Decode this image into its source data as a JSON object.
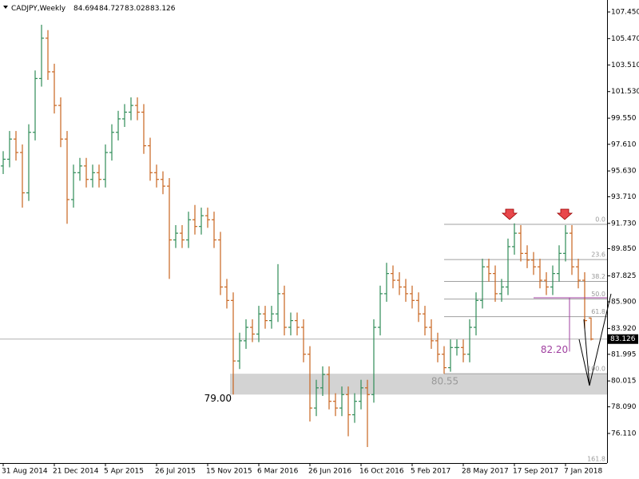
{
  "chart_data": {
    "type": "ohlc",
    "symbol": "CADJPY,Weekly",
    "categories": [
      "31 Aug 2014",
      null,
      null,
      null,
      null,
      null,
      null,
      null,
      "21 Dec 2014",
      null,
      null,
      null,
      null,
      null,
      null,
      null,
      "5 Apr 2015",
      null,
      null,
      null,
      null,
      null,
      null,
      null,
      "26 Jul 2015",
      null,
      null,
      null,
      null,
      null,
      null,
      null,
      "15 Nov 2015",
      null,
      null,
      null,
      null,
      null,
      null,
      null,
      "6 Mar 2016",
      null,
      null,
      null,
      null,
      null,
      null,
      null,
      "26 Jun 2016",
      null,
      null,
      null,
      null,
      null,
      null,
      null,
      "16 Oct 2016",
      null,
      null,
      null,
      null,
      null,
      null,
      null,
      "5 Feb 2017",
      null,
      null,
      null,
      null,
      null,
      null,
      null,
      "28 May 2017",
      null,
      null,
      null,
      null,
      null,
      null,
      null,
      "17 Sep 2017",
      null,
      null,
      null,
      null,
      null,
      null,
      null,
      "7 Jan 2018",
      null,
      null,
      null,
      null
    ],
    "open": [
      96.0,
      96.5,
      98.0,
      97.0,
      94.0,
      98.5,
      102.5,
      105.5,
      103.0,
      100.5,
      98.0,
      93.5,
      95.5,
      96.0,
      95.0,
      95.5,
      95.0,
      97.0,
      98.5,
      99.5,
      100.0,
      100.5,
      100.0,
      97.5,
      95.5,
      95.0,
      94.5,
      90.5,
      91.0,
      90.5,
      92.0,
      91.5,
      92.3,
      92.0,
      90.5,
      87.0,
      86.0,
      81.5,
      83.0,
      84.0,
      83.5,
      85.0,
      84.5,
      85.0,
      86.5,
      84.0,
      84.5,
      84.0,
      82.0,
      78.0,
      79.5,
      80.5,
      78.5,
      78.0,
      79.0,
      77.5,
      78.5,
      79.5,
      79.0,
      84.0,
      86.5,
      88.0,
      87.5,
      87.0,
      86.5,
      86.0,
      85.0,
      84.0,
      83.0,
      82.0,
      81.0,
      82.5,
      82.5,
      82.0,
      84.0,
      86.0,
      88.5,
      88.0,
      86.5,
      87.0,
      90.0,
      91.0,
      89.5,
      89.0,
      88.5,
      87.5,
      87.0,
      88.0,
      89.5,
      91.0,
      88.5,
      87.5,
      84.694
    ],
    "high": [
      97.1,
      98.6,
      98.6,
      97.6,
      99.1,
      103.1,
      106.5,
      106.1,
      103.6,
      101.1,
      98.6,
      96.1,
      96.6,
      96.6,
      96.1,
      96.1,
      97.6,
      99.1,
      100.1,
      100.6,
      101.1,
      101.1,
      100.6,
      98.1,
      96.1,
      95.6,
      95.1,
      91.6,
      91.6,
      92.6,
      93.1,
      92.9,
      92.9,
      92.6,
      91.1,
      87.6,
      86.6,
      83.6,
      84.6,
      84.6,
      85.6,
      85.6,
      85.6,
      88.7,
      87.1,
      85.1,
      85.1,
      84.6,
      82.6,
      80.1,
      81.1,
      81.1,
      79.1,
      79.6,
      79.6,
      79.1,
      80.1,
      80.1,
      84.6,
      87.1,
      88.8,
      88.6,
      88.1,
      87.6,
      87.1,
      86.6,
      85.6,
      84.6,
      83.6,
      82.6,
      83.1,
      83.1,
      83.1,
      84.6,
      86.6,
      89.1,
      89.1,
      88.6,
      87.6,
      90.6,
      91.73,
      91.6,
      90.1,
      89.6,
      89.1,
      88.1,
      88.6,
      90.1,
      91.6,
      91.6,
      89.1,
      88.1,
      84.727
    ],
    "low": [
      95.4,
      95.9,
      96.4,
      92.9,
      93.4,
      97.9,
      101.9,
      102.4,
      99.9,
      97.4,
      91.7,
      92.9,
      94.9,
      94.4,
      94.4,
      94.4,
      94.4,
      96.4,
      97.9,
      98.9,
      99.4,
      99.4,
      96.9,
      94.9,
      94.4,
      93.9,
      87.6,
      89.9,
      89.9,
      89.9,
      90.9,
      90.9,
      91.4,
      89.9,
      86.4,
      85.4,
      79.0,
      80.9,
      82.4,
      82.9,
      82.9,
      83.9,
      83.9,
      84.4,
      83.4,
      83.4,
      83.4,
      81.4,
      77.0,
      77.4,
      78.9,
      77.9,
      77.4,
      77.4,
      75.9,
      76.9,
      77.9,
      75.1,
      78.4,
      83.4,
      85.9,
      86.9,
      86.4,
      85.9,
      85.4,
      84.4,
      83.4,
      82.4,
      81.4,
      80.55,
      80.7,
      81.9,
      81.4,
      81.4,
      83.4,
      85.4,
      87.4,
      85.9,
      85.9,
      86.4,
      89.4,
      88.9,
      88.4,
      87.9,
      86.9,
      86.4,
      86.4,
      87.4,
      88.9,
      87.9,
      86.9,
      83.9,
      83.028
    ],
    "close": [
      96.5,
      98.0,
      97.0,
      94.0,
      98.5,
      102.5,
      105.5,
      103.0,
      100.5,
      98.0,
      93.5,
      95.5,
      96.0,
      95.0,
      95.5,
      95.0,
      97.0,
      98.5,
      99.5,
      100.0,
      100.5,
      100.0,
      97.5,
      95.5,
      95.0,
      94.5,
      90.5,
      91.0,
      90.5,
      92.0,
      91.5,
      92.3,
      92.0,
      90.5,
      87.0,
      86.0,
      81.5,
      83.0,
      84.0,
      83.5,
      85.0,
      84.5,
      85.0,
      86.5,
      84.0,
      84.5,
      84.0,
      82.0,
      78.0,
      79.5,
      80.5,
      78.5,
      78.0,
      79.0,
      77.5,
      78.5,
      79.5,
      79.0,
      84.0,
      86.5,
      88.0,
      87.5,
      87.0,
      86.5,
      86.0,
      85.0,
      84.0,
      83.0,
      82.0,
      81.0,
      82.5,
      82.5,
      82.0,
      84.0,
      86.0,
      88.5,
      88.0,
      86.5,
      87.0,
      90.0,
      91.0,
      89.5,
      89.0,
      88.5,
      87.5,
      87.0,
      88.0,
      89.5,
      91.0,
      88.5,
      87.5,
      84.5,
      83.126
    ],
    "up_color": "#2e8b57",
    "down_color": "#c8641e",
    "ylim": [
      73.91,
      108.34
    ],
    "yticks": [
      {
        "value": 107.45,
        "label": "107.450"
      },
      {
        "value": 105.47,
        "label": "105.470"
      },
      {
        "value": 103.51,
        "label": "103.510"
      },
      {
        "value": 101.53,
        "label": "101.530"
      },
      {
        "value": 99.55,
        "label": "99.550"
      },
      {
        "value": 97.61,
        "label": "97.610"
      },
      {
        "value": 95.63,
        "label": "95.630"
      },
      {
        "value": 93.71,
        "label": "93.710"
      },
      {
        "value": 91.73,
        "label": "91.730"
      },
      {
        "value": 89.85,
        "label": "89.850"
      },
      {
        "value": 87.825,
        "label": "87.825"
      },
      {
        "value": 85.9,
        "label": "85.900"
      },
      {
        "value": 83.92,
        "label": "83.920"
      },
      {
        "value": 81.995,
        "label": "81.995"
      },
      {
        "value": 80.015,
        "label": "80.015"
      },
      {
        "value": 78.09,
        "label": "78.090"
      },
      {
        "value": 76.11,
        "label": "76.110"
      }
    ],
    "fibonacci": {
      "high": 91.66,
      "low": 80.55,
      "start_index": 69,
      "levels": [
        {
          "value": 0,
          "label": "0.0"
        },
        {
          "value": 23.6,
          "label": "23.6"
        },
        {
          "value": 38.2,
          "label": "38.2"
        },
        {
          "value": 50,
          "label": "50.0"
        },
        {
          "value": 61.8,
          "label": "61.8"
        },
        {
          "value": 100,
          "label": "100.0"
        },
        {
          "value": 161.8,
          "label": "161.8"
        }
      ]
    },
    "support_zone": {
      "low": {
        "value": 79,
        "label": "79.00"
      },
      "high": 80.55,
      "start_index": 36
    },
    "measure": {
      "top": 86.2,
      "bottom": {
        "value": 82.2,
        "label": "82.20"
      }
    }
  }
}
